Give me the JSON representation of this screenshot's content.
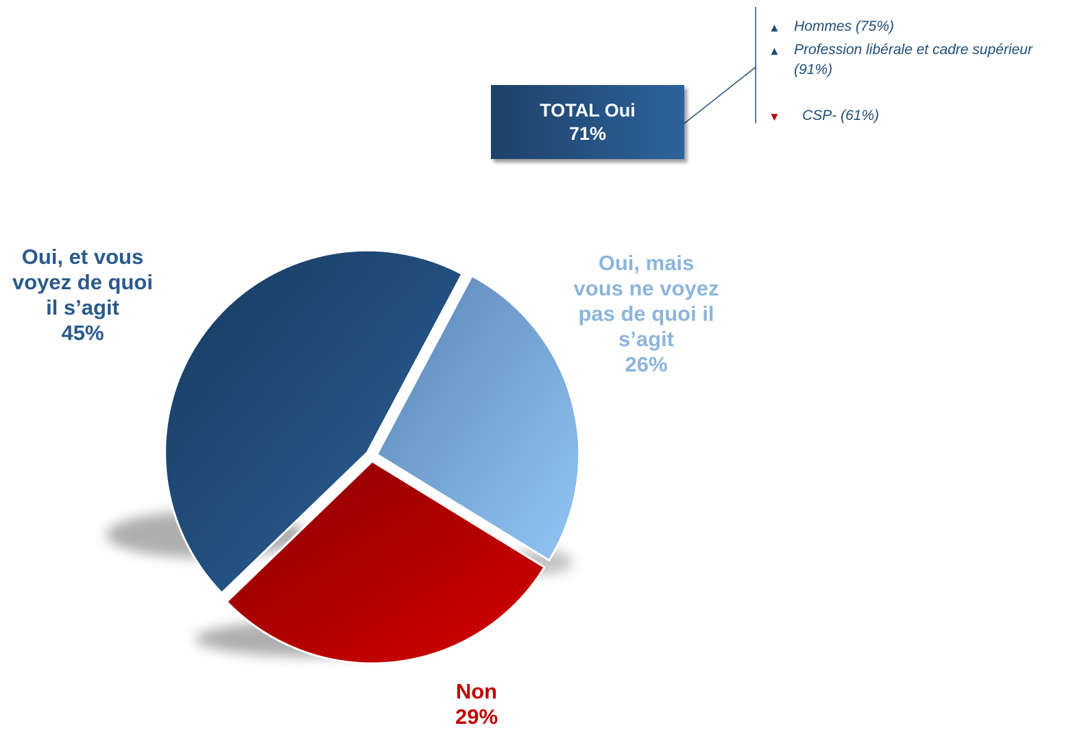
{
  "chart_data": {
    "type": "pie",
    "slices": [
      {
        "label_lines": [
          "Oui, et vous",
          "voyez de quoi",
          "il s’agit"
        ],
        "value": 45,
        "value_label": "45%",
        "color": "#2a5a8c"
      },
      {
        "label_lines": [
          "Oui, mais",
          "vous ne voyez",
          "pas de quoi il",
          "s’agit"
        ],
        "value": 26,
        "value_label": "26%",
        "color": "#8db5dc"
      },
      {
        "label_lines": [
          "Non"
        ],
        "value": 29,
        "value_label": "29%",
        "color": "#c00000"
      }
    ]
  },
  "total": {
    "title": "TOTAL Oui",
    "value": "71%"
  },
  "notes": [
    {
      "text": "Hommes (75%)",
      "direction": "up",
      "color": "#1f4e79"
    },
    {
      "text": "Profession libérale et cadre supérieur (91%)",
      "direction": "up",
      "color": "#1f4e79"
    },
    {
      "text": "CSP- (61%)",
      "direction": "down",
      "color": "#c00000"
    }
  ]
}
